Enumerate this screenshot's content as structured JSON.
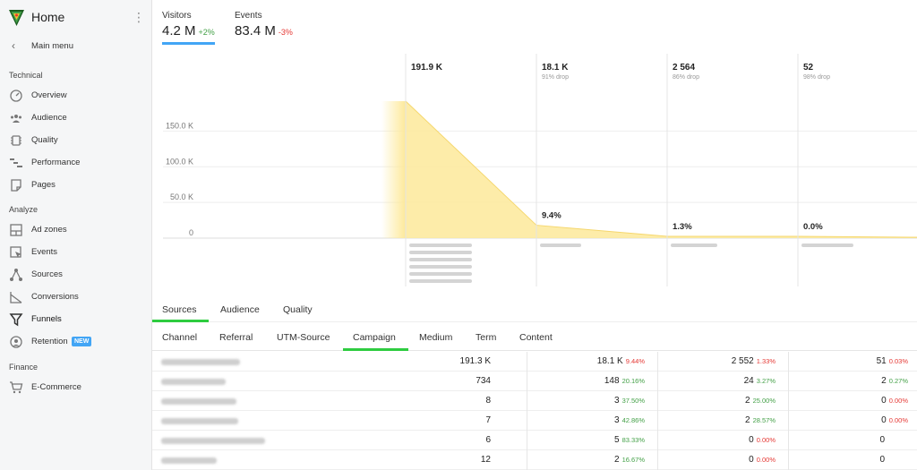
{
  "sidebar": {
    "title": "Home",
    "main_menu": "Main menu",
    "sections": [
      {
        "title": "Technical",
        "items": [
          {
            "label": "Overview",
            "icon": "gauge-icon"
          },
          {
            "label": "Audience",
            "icon": "users-icon"
          },
          {
            "label": "Quality",
            "icon": "chip-icon"
          },
          {
            "label": "Performance",
            "icon": "waterfall-icon"
          },
          {
            "label": "Pages",
            "icon": "page-icon"
          }
        ]
      },
      {
        "title": "Analyze",
        "items": [
          {
            "label": "Ad zones",
            "icon": "layout-icon"
          },
          {
            "label": "Events",
            "icon": "cursor-icon"
          },
          {
            "label": "Sources",
            "icon": "share-icon"
          },
          {
            "label": "Conversions",
            "icon": "area-chart-icon"
          },
          {
            "label": "Funnels",
            "icon": "funnel-icon"
          },
          {
            "label": "Retention",
            "icon": "retention-icon",
            "badge": "NEW"
          }
        ]
      },
      {
        "title": "Finance",
        "items": [
          {
            "label": "E-Commerce",
            "icon": "cart-icon"
          }
        ]
      }
    ]
  },
  "metrics": {
    "visitors": {
      "label": "Visitors",
      "value": "4.2 M",
      "change": "+2%"
    },
    "events": {
      "label": "Events",
      "value": "83.4 M",
      "change": "-3%"
    }
  },
  "chart_data": {
    "type": "area",
    "y_ticks": [
      "150.0 K",
      "100.0 K",
      "50.0 K",
      "0"
    ],
    "ylim": [
      0,
      191900
    ],
    "steps": [
      {
        "value": "191.9 K",
        "raw": 191900,
        "drop": "",
        "conversion": ""
      },
      {
        "value": "18.1 K",
        "raw": 18100,
        "drop": "91% drop",
        "conversion": "9.4%"
      },
      {
        "value": "2 564",
        "raw": 2564,
        "drop": "86% drop",
        "conversion": "1.3%"
      },
      {
        "value": "52",
        "raw": 52,
        "drop": "98% drop",
        "conversion": "0.0%"
      }
    ],
    "colors": {
      "fill": "#fde99a",
      "stroke": "#f5d76e"
    }
  },
  "tabs_primary": [
    "Sources",
    "Audience",
    "Quality"
  ],
  "tabs_secondary": [
    "Channel",
    "Referral",
    "UTM-Source",
    "Campaign",
    "Medium",
    "Term",
    "Content"
  ],
  "table": {
    "rows": [
      {
        "c1": "191.3 K",
        "c2": "18.1 K",
        "p2": "9.44%",
        "p2c": "r",
        "c3": "2 552",
        "p3": "1.33%",
        "p3c": "r",
        "c4": "51",
        "p4": "0.03%",
        "p4c": "r"
      },
      {
        "c1": "734",
        "c2": "148",
        "p2": "20.16%",
        "p2c": "g",
        "c3": "24",
        "p3": "3.27%",
        "p3c": "g",
        "c4": "2",
        "p4": "0.27%",
        "p4c": "g"
      },
      {
        "c1": "8",
        "c2": "3",
        "p2": "37.50%",
        "p2c": "g",
        "c3": "2",
        "p3": "25.00%",
        "p3c": "g",
        "c4": "0",
        "p4": "0.00%",
        "p4c": "r"
      },
      {
        "c1": "7",
        "c2": "3",
        "p2": "42.86%",
        "p2c": "g",
        "c3": "2",
        "p3": "28.57%",
        "p3c": "g",
        "c4": "0",
        "p4": "0.00%",
        "p4c": "r"
      },
      {
        "c1": "6",
        "c2": "5",
        "p2": "83.33%",
        "p2c": "g",
        "c3": "0",
        "p3": "0.00%",
        "p3c": "r",
        "c4": "0",
        "p4": "",
        "p4c": "r"
      },
      {
        "c1": "12",
        "c2": "2",
        "p2": "16.67%",
        "p2c": "g",
        "c3": "0",
        "p3": "0.00%",
        "p3c": "r",
        "c4": "0",
        "p4": "",
        "p4c": "r"
      }
    ]
  }
}
